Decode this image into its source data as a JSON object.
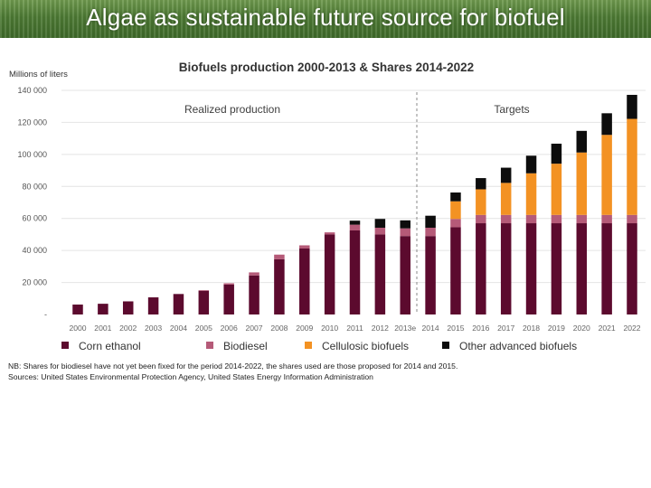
{
  "slide": {
    "title": "Algae as sustainable future source for biofuel"
  },
  "chart_data": {
    "type": "bar",
    "stacked": true,
    "title": "Biofuels production 2000-2013 & Shares 2014-2022",
    "ylabel": "Millions of liters",
    "ylim": [
      0,
      140000
    ],
    "yticks": [
      "-",
      "20 000",
      "40 000",
      "60 000",
      "80 000",
      "100 000",
      "120 000",
      "140 000"
    ],
    "grid": true,
    "legend_position": "bottom",
    "region_labels": [
      "Realized production",
      "Targets"
    ],
    "categories": [
      "2000",
      "2001",
      "2002",
      "2003",
      "2004",
      "2005",
      "2006",
      "2007",
      "2008",
      "2009",
      "2010",
      "2011",
      "2012",
      "2013e",
      "2014",
      "2015",
      "2016",
      "2017",
      "2018",
      "2019",
      "2020",
      "2021",
      "2022"
    ],
    "series": [
      {
        "name": "Corn ethanol",
        "color": "#5c0a2e",
        "values": [
          6200,
          6700,
          8200,
          10700,
          12800,
          14800,
          18700,
          24400,
          34500,
          41200,
          50000,
          52500,
          50000,
          49000,
          49000,
          54500,
          57000,
          57000,
          57000,
          57000,
          57000,
          57000,
          57000
        ]
      },
      {
        "name": "Biodiesel",
        "color": "#b55a78",
        "values": [
          0,
          0,
          0,
          0,
          0,
          400,
          800,
          1900,
          2900,
          2000,
          1300,
          3600,
          4200,
          4800,
          5200,
          5200,
          5200,
          5200,
          5200,
          5200,
          5200,
          5200,
          5200
        ]
      },
      {
        "name": "Cellulosic biofuels",
        "color": "#f39223",
        "values": [
          0,
          0,
          0,
          0,
          0,
          0,
          0,
          0,
          0,
          0,
          0,
          0,
          0,
          0,
          0,
          11000,
          16000,
          20000,
          26000,
          32000,
          39000,
          50000,
          60000
        ]
      },
      {
        "name": "Other advanced biofuels",
        "color": "#0d0d0d",
        "values": [
          0,
          0,
          0,
          0,
          0,
          0,
          0,
          0,
          0,
          0,
          0,
          2500,
          5500,
          5000,
          7500,
          5500,
          7000,
          9500,
          11000,
          12500,
          13500,
          13500,
          15000
        ]
      }
    ],
    "notes": [
      "NB: Shares for biodiesel have not yet been fixed  for the period 2014-2022, the shares used are those proposed for 2014 and 2015.",
      "Sources: United States Environmental Protection Agency, United States Energy Information Administration"
    ]
  }
}
